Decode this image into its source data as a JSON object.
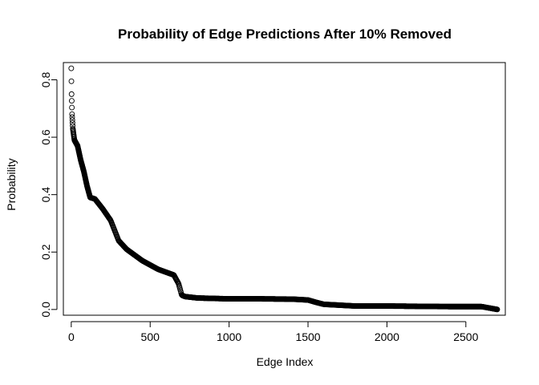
{
  "chart_data": {
    "type": "scatter",
    "title": "Probability of Edge Predictions After 10% Removed",
    "xlabel": "Edge Index",
    "ylabel": "Probability",
    "xlim": [
      -50,
      2750
    ],
    "ylim": [
      -0.02,
      0.86
    ],
    "x_ticks": [
      0,
      500,
      1000,
      1500,
      2000,
      2500
    ],
    "x_tick_labels": [
      "0",
      "500",
      "1000",
      "1500",
      "2000",
      "2500"
    ],
    "y_ticks": [
      0.0,
      0.2,
      0.4,
      0.6,
      0.8
    ],
    "y_tick_labels": [
      "0.0",
      "0.2",
      "0.4",
      "0.6",
      "0.8"
    ],
    "grid": false,
    "legend": "none",
    "marker": "open-circle",
    "color": "#000000",
    "curve_knots": {
      "x": [
        0,
        2,
        5,
        10,
        20,
        40,
        60,
        80,
        100,
        120,
        150,
        200,
        250,
        300,
        350,
        400,
        450,
        500,
        550,
        600,
        650,
        680,
        700,
        720,
        800,
        1000,
        1200,
        1400,
        1500,
        1550,
        1600,
        1700,
        1800,
        2000,
        2200,
        2400,
        2600,
        2650,
        2700
      ],
      "y": [
        0.84,
        0.75,
        0.68,
        0.63,
        0.59,
        0.57,
        0.52,
        0.48,
        0.43,
        0.39,
        0.385,
        0.35,
        0.31,
        0.24,
        0.21,
        0.19,
        0.17,
        0.155,
        0.14,
        0.13,
        0.12,
        0.09,
        0.05,
        0.045,
        0.04,
        0.037,
        0.037,
        0.036,
        0.033,
        0.025,
        0.018,
        0.015,
        0.012,
        0.012,
        0.011,
        0.01,
        0.01,
        0.005,
        0.0
      ]
    },
    "n_points": 2700
  }
}
